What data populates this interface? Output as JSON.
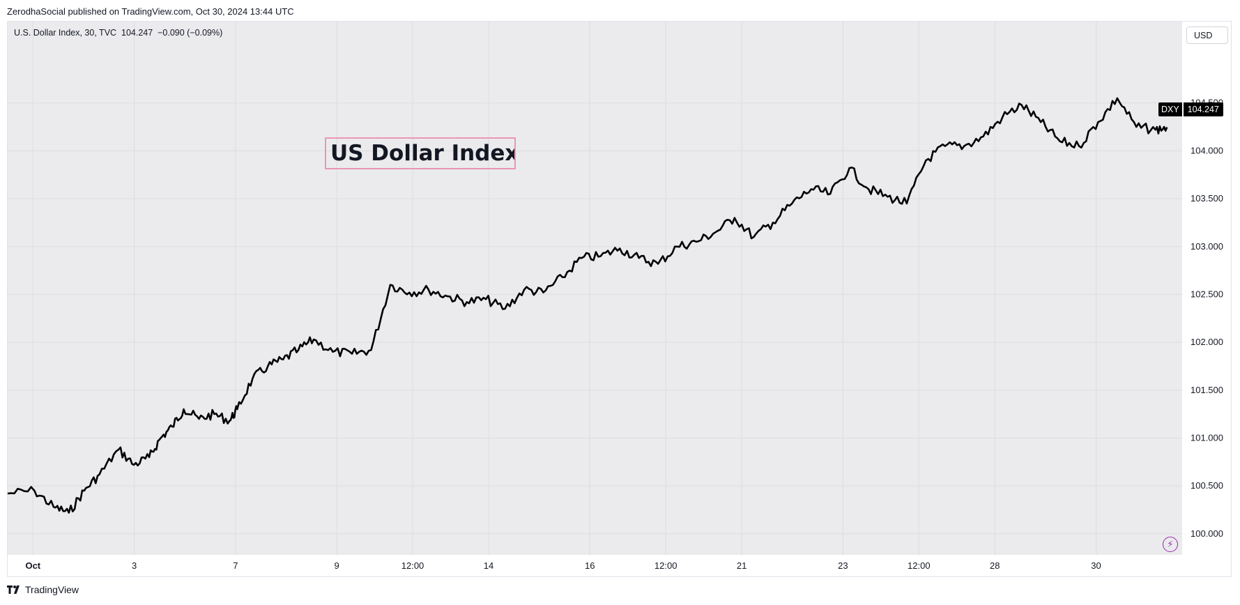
{
  "header": {
    "published_text": "ZerodhaSocial published on TradingView.com, Oct 30, 2024 13:44 UTC"
  },
  "legend": {
    "text": "U.S. Dollar Index, 30, TVC  104.247  −0.090 (−0.09%)"
  },
  "currency_button": {
    "label": "USD"
  },
  "annotation": {
    "text": "US Dollar Index",
    "border_color": "#e996b6"
  },
  "price_tag": {
    "symbol": "DXY",
    "value": "104.247"
  },
  "footer": {
    "brand": "TradingView"
  },
  "icons": {
    "lightning": "lightning-icon",
    "logo": "tradingview-logo-icon"
  },
  "colors": {
    "line": "#000000",
    "plot_bg": "#ebebed",
    "accent": "#9c27b0"
  },
  "chart_data": {
    "type": "line",
    "series": [
      {
        "name": "DXY",
        "x": [
          0,
          0.7,
          1.2,
          1.6,
          2,
          2.4,
          2.9,
          3.3,
          3.7,
          4,
          4.3,
          4.6,
          5,
          5.4,
          5.8,
          6,
          6.4,
          6.8,
          7.2,
          7.6,
          8,
          8.5,
          9,
          9.5,
          10,
          10.5,
          11,
          11.5,
          12,
          12.5,
          13,
          13.5,
          14,
          14.5,
          15,
          15.5,
          16,
          16.5,
          17,
          17.5,
          18,
          18.5,
          19,
          19.5,
          20,
          20.5,
          21,
          21.5,
          22,
          22.5,
          23,
          23.5,
          24,
          24.5,
          25,
          25.5,
          26,
          26.5,
          27,
          27.5,
          28,
          28.5,
          29,
          29.5,
          30,
          30.3
        ],
        "y": [
          100.42,
          100.45,
          100.28,
          100.22,
          100.45,
          100.62,
          100.88,
          100.72,
          100.8,
          101.0,
          101.12,
          101.3,
          101.2,
          101.25,
          101.18,
          101.3,
          101.62,
          101.75,
          101.82,
          101.92,
          102.03,
          101.9,
          101.88,
          101.92,
          102.6,
          102.52,
          102.55,
          102.48,
          102.42,
          102.45,
          102.35,
          102.55,
          102.52,
          102.68,
          102.88,
          102.9,
          102.98,
          102.88,
          102.82,
          103.0,
          103.05,
          103.15,
          103.3,
          103.1,
          103.25,
          103.45,
          103.6,
          103.55,
          103.82,
          103.6,
          103.52,
          103.45,
          103.9,
          104.05,
          104.05,
          104.15,
          104.35,
          104.48,
          104.3,
          104.1,
          104.05,
          104.3,
          104.55,
          104.25,
          104.22,
          104.247
        ]
      }
    ],
    "x_tick_labels": [
      {
        "x": 0.5,
        "label": "Oct",
        "bold": true
      },
      {
        "x": 2.5,
        "label": "3"
      },
      {
        "x": 4.5,
        "label": "7"
      },
      {
        "x": 6.5,
        "label": "9"
      },
      {
        "x": 8.0,
        "label": "12:00"
      },
      {
        "x": 9.5,
        "label": "14"
      },
      {
        "x": 11.5,
        "label": "16"
      },
      {
        "x": 13.0,
        "label": "12:00"
      },
      {
        "x": 14.5,
        "label": "21"
      },
      {
        "x": 16.5,
        "label": "23"
      },
      {
        "x": 18.0,
        "label": "12:00"
      },
      {
        "x": 19.5,
        "label": "28"
      },
      {
        "x": 21.5,
        "label": "30"
      }
    ],
    "y_ticks": [
      100.0,
      100.5,
      101.0,
      101.5,
      102.0,
      102.5,
      103.0,
      103.5,
      104.0,
      104.5
    ],
    "y_tick_labels": [
      "100.000",
      "100.500",
      "101.000",
      "101.500",
      "102.000",
      "102.500",
      "103.000",
      "103.500",
      "104.000",
      "104.500"
    ],
    "ylim": [
      99.78,
      105.35
    ],
    "last_value": 104.247,
    "grid": true
  }
}
